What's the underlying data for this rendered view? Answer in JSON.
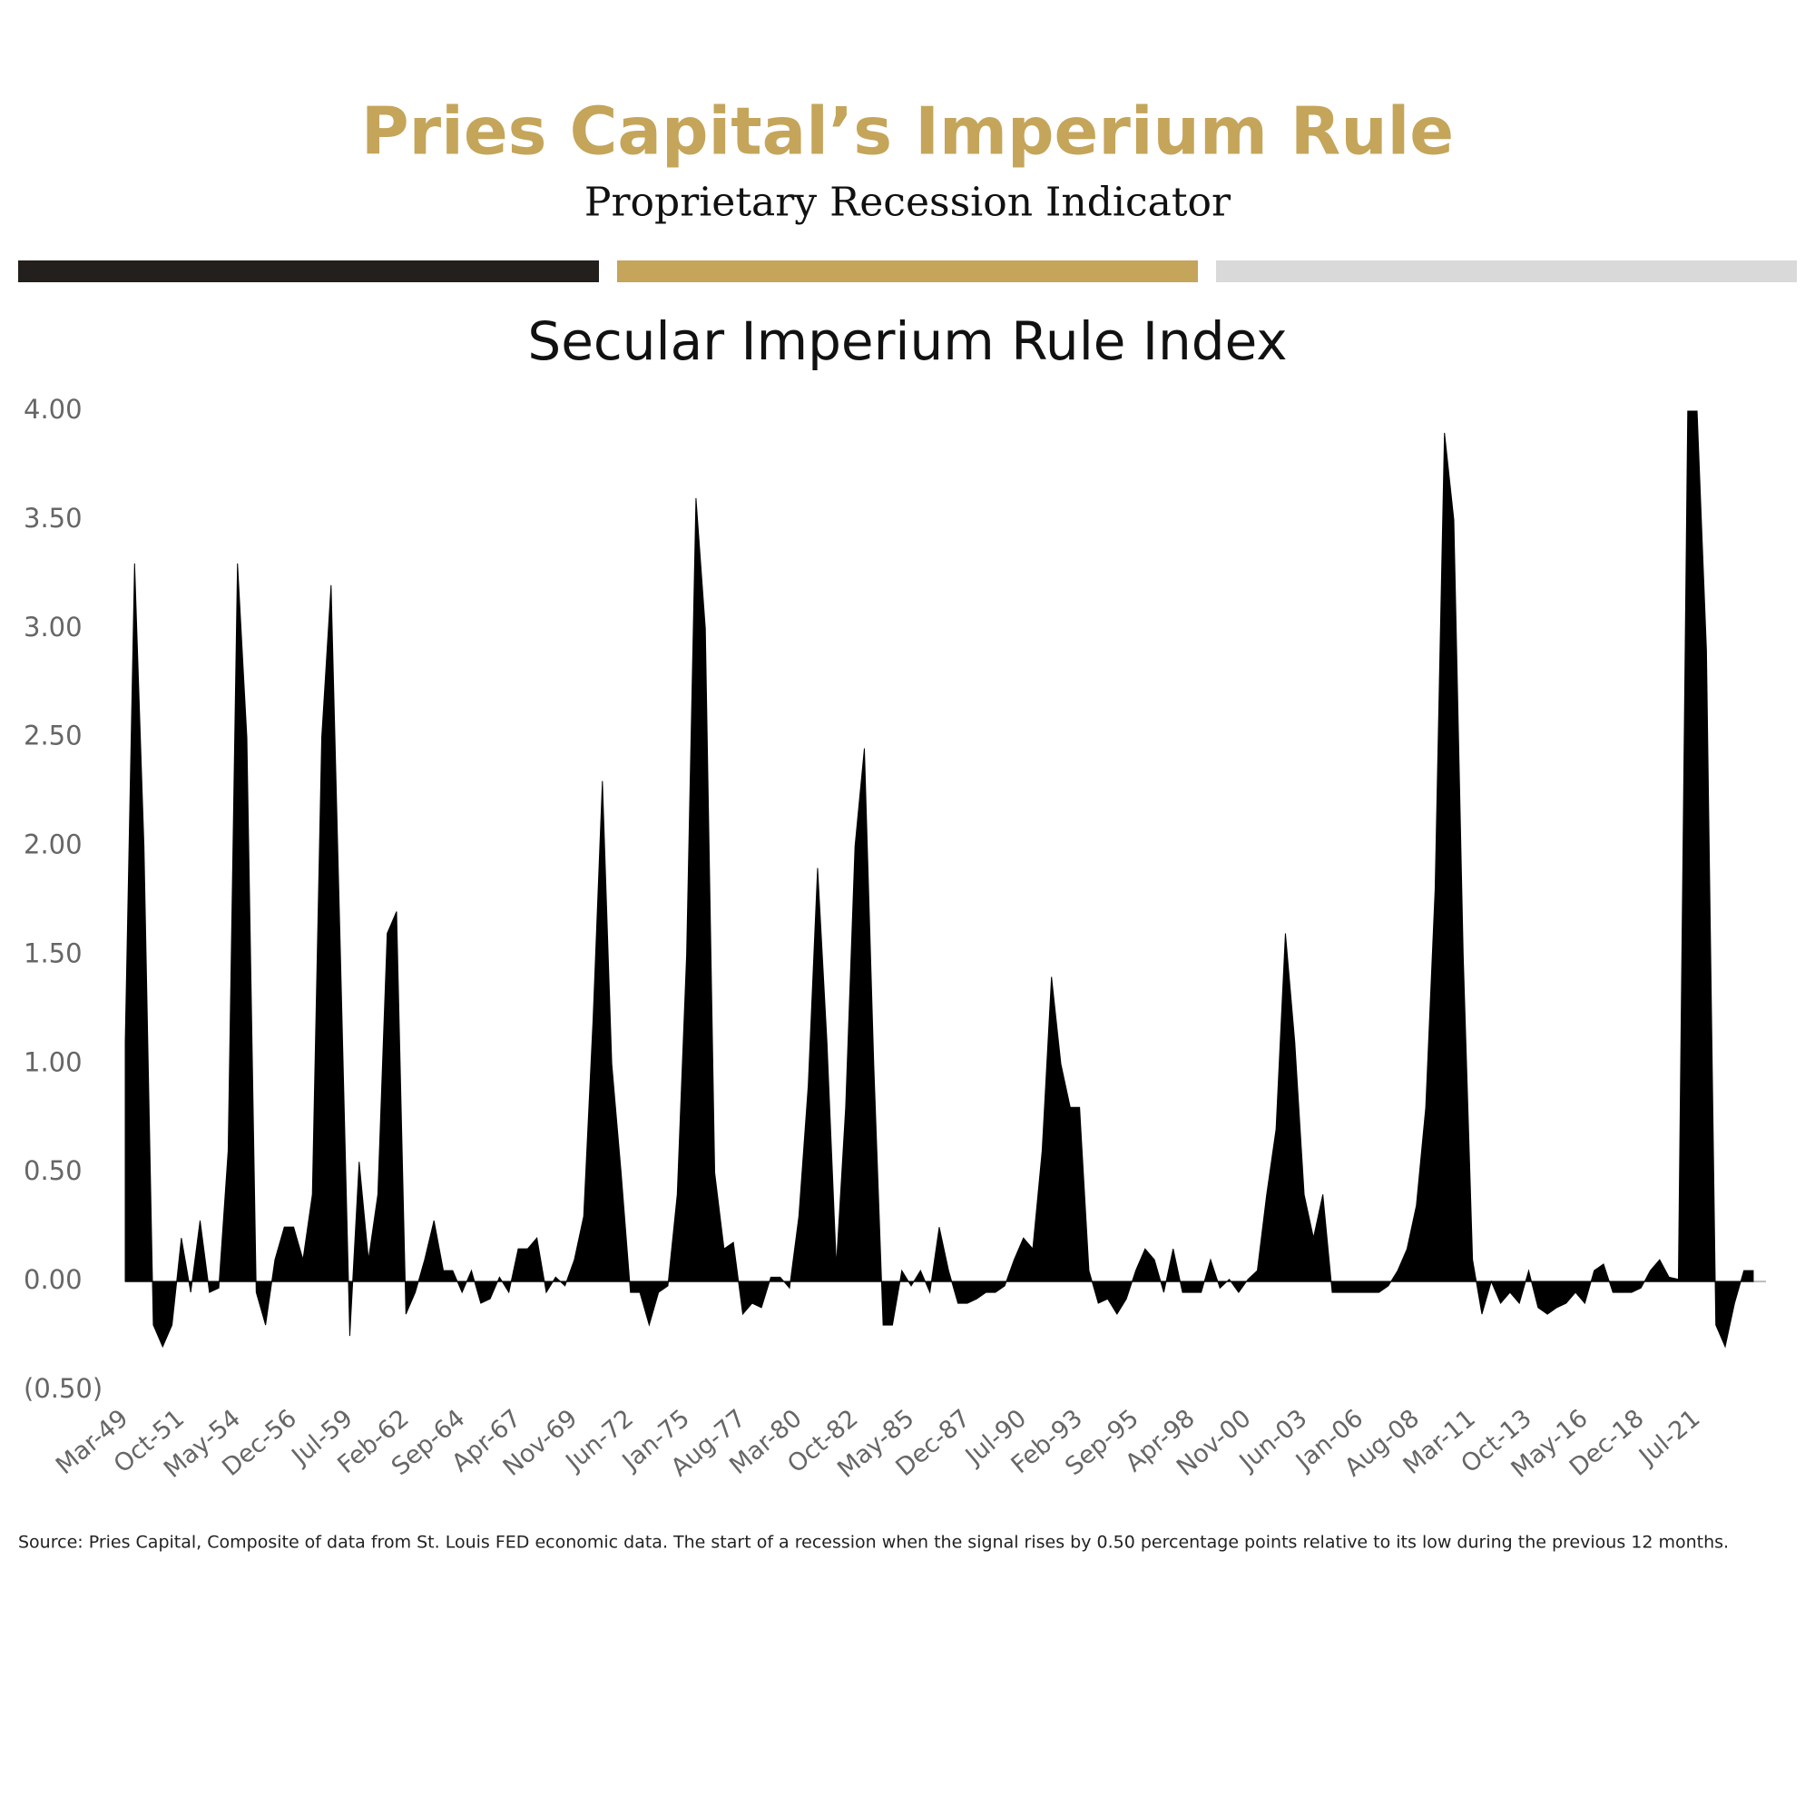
{
  "header": {
    "title": "Pries Capital’s Imperium Rule",
    "subtitle": "Proprietary Recession Indicator"
  },
  "chart_data": {
    "type": "area",
    "title": "Secular Imperium Rule Index",
    "color": "#000000",
    "negative_tick_color": "#e85a5a",
    "categories": [
      "Mar-49",
      null,
      null,
      null,
      null,
      null,
      "Oct-51",
      null,
      null,
      null,
      null,
      null,
      "May-54",
      null,
      null,
      null,
      null,
      null,
      "Dec-56",
      null,
      null,
      null,
      null,
      null,
      "Jul-59",
      null,
      null,
      null,
      null,
      null,
      "Feb-62",
      null,
      null,
      null,
      null,
      null,
      "Sep-64",
      null,
      null,
      null,
      null,
      null,
      "Apr-67",
      null,
      null,
      null,
      null,
      null,
      "Nov-69",
      null,
      null,
      null,
      null,
      null,
      "Jun-72",
      null,
      null,
      null,
      null,
      null,
      "Jan-75",
      null,
      null,
      null,
      null,
      null,
      "Aug-77",
      null,
      null,
      null,
      null,
      null,
      "Mar-80",
      null,
      null,
      null,
      null,
      null,
      "Oct-82",
      null,
      null,
      null,
      null,
      null,
      "May-85",
      null,
      null,
      null,
      null,
      null,
      "Dec-87",
      null,
      null,
      null,
      null,
      null,
      "Jul-90",
      null,
      null,
      null,
      null,
      null,
      "Feb-93",
      null,
      null,
      null,
      null,
      null,
      "Sep-95",
      null,
      null,
      null,
      null,
      null,
      "Apr-98",
      null,
      null,
      null,
      null,
      null,
      "Nov-00",
      null,
      null,
      null,
      null,
      null,
      "Jun-03",
      null,
      null,
      null,
      null,
      null,
      "Jan-06",
      null,
      null,
      null,
      null,
      null,
      "Aug-08",
      null,
      null,
      null,
      null,
      null,
      "Mar-11",
      null,
      null,
      null,
      null,
      null,
      "Oct-13",
      null,
      null,
      null,
      null,
      null,
      "May-16",
      null,
      null,
      null,
      null,
      null,
      "Dec-18",
      null,
      null,
      null,
      null,
      null,
      "Jul-21",
      null,
      null,
      null,
      null,
      null,
      null
    ],
    "values": [
      1.1,
      3.3,
      2.0,
      -0.2,
      -0.3,
      -0.2,
      0.2,
      -0.05,
      0.28,
      -0.05,
      -0.03,
      0.6,
      3.3,
      2.5,
      -0.05,
      -0.2,
      0.1,
      0.25,
      0.25,
      0.1,
      0.4,
      2.5,
      3.2,
      1.5,
      -0.25,
      0.55,
      0.1,
      0.4,
      1.6,
      1.7,
      -0.15,
      -0.05,
      0.1,
      0.28,
      0.05,
      0.05,
      -0.05,
      0.05,
      -0.1,
      -0.08,
      0.02,
      -0.05,
      0.15,
      0.15,
      0.2,
      -0.05,
      0.02,
      -0.02,
      0.1,
      0.3,
      1.2,
      2.3,
      1.0,
      0.5,
      -0.05,
      -0.05,
      -0.2,
      -0.05,
      -0.02,
      0.4,
      1.5,
      3.6,
      3.0,
      0.5,
      0.15,
      0.18,
      -0.15,
      -0.1,
      -0.12,
      0.02,
      0.02,
      -0.03,
      0.3,
      0.9,
      1.9,
      1.1,
      0.07,
      0.8,
      2.0,
      2.45,
      1.0,
      -0.2,
      -0.2,
      0.05,
      -0.02,
      0.05,
      -0.05,
      0.25,
      0.05,
      -0.1,
      -0.1,
      -0.08,
      -0.05,
      -0.05,
      -0.02,
      0.1,
      0.2,
      0.15,
      0.6,
      1.4,
      1.0,
      0.8,
      0.8,
      0.05,
      -0.1,
      -0.08,
      -0.15,
      -0.08,
      0.05,
      0.15,
      0.1,
      -0.05,
      0.15,
      -0.05,
      -0.05,
      -0.05,
      0.1,
      -0.03,
      0.01,
      -0.05,
      0.01,
      0.05,
      0.4,
      0.7,
      1.6,
      1.1,
      0.4,
      0.2,
      0.4,
      -0.05,
      -0.05,
      -0.05,
      -0.05,
      -0.05,
      -0.05,
      -0.02,
      0.05,
      0.15,
      0.35,
      0.8,
      1.8,
      3.9,
      3.5,
      1.5,
      0.1,
      -0.15,
      0.0,
      -0.1,
      -0.05,
      -0.1,
      0.05,
      -0.12,
      -0.15,
      -0.12,
      -0.1,
      -0.05,
      -0.1,
      0.05,
      0.08,
      -0.05,
      -0.05,
      -0.05,
      -0.03,
      0.05,
      0.1,
      0.02,
      0.01,
      4.0,
      4.0,
      2.9,
      -0.2,
      -0.3,
      -0.1,
      0.05,
      0.05
    ],
    "ylim": [
      -0.5,
      4.0
    ],
    "yticks": [
      {
        "value": 4.0,
        "label": "4.00"
      },
      {
        "value": 3.5,
        "label": "3.50"
      },
      {
        "value": 3.0,
        "label": "3.00"
      },
      {
        "value": 2.5,
        "label": "2.50"
      },
      {
        "value": 2.0,
        "label": "2.00"
      },
      {
        "value": 1.5,
        "label": "1.50"
      },
      {
        "value": 1.0,
        "label": "1.00"
      },
      {
        "value": 0.5,
        "label": "0.50"
      },
      {
        "value": 0,
        "label": "0.00"
      },
      {
        "value": -0.5,
        "label": "(0.50)"
      }
    ],
    "grid": false
  },
  "source": "Source: Pries Capital, Composite of data from St. Louis FED economic data. The start of a recession when the signal rises by 0.50 percentage points relative to its low during the previous 12 months."
}
